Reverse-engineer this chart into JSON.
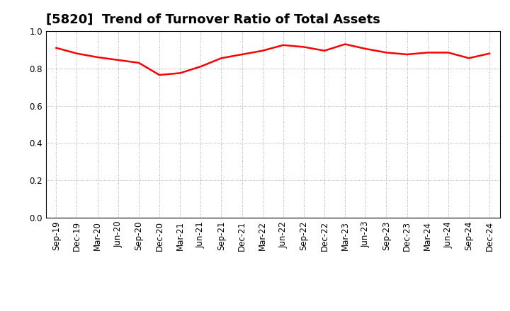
{
  "title": "[5820]  Trend of Turnover Ratio of Total Assets",
  "x_labels": [
    "Sep-19",
    "Dec-19",
    "Mar-20",
    "Jun-20",
    "Sep-20",
    "Dec-20",
    "Mar-21",
    "Jun-21",
    "Sep-21",
    "Dec-21",
    "Mar-22",
    "Jun-22",
    "Sep-22",
    "Dec-22",
    "Mar-23",
    "Jun-23",
    "Sep-23",
    "Dec-23",
    "Mar-24",
    "Jun-24",
    "Sep-24",
    "Dec-24"
  ],
  "values": [
    0.91,
    0.88,
    0.86,
    0.845,
    0.83,
    0.765,
    0.775,
    0.81,
    0.855,
    0.875,
    0.895,
    0.925,
    0.915,
    0.895,
    0.93,
    0.905,
    0.885,
    0.875,
    0.885,
    0.885,
    0.855,
    0.88
  ],
  "line_color": "#ff0000",
  "line_width": 1.8,
  "background_color": "#ffffff",
  "grid_color": "#999999",
  "spine_color": "#000000",
  "ylim": [
    0.0,
    1.0
  ],
  "yticks": [
    0.0,
    0.2,
    0.4,
    0.6,
    0.8,
    1.0
  ],
  "title_fontsize": 13,
  "tick_fontsize": 8.5
}
